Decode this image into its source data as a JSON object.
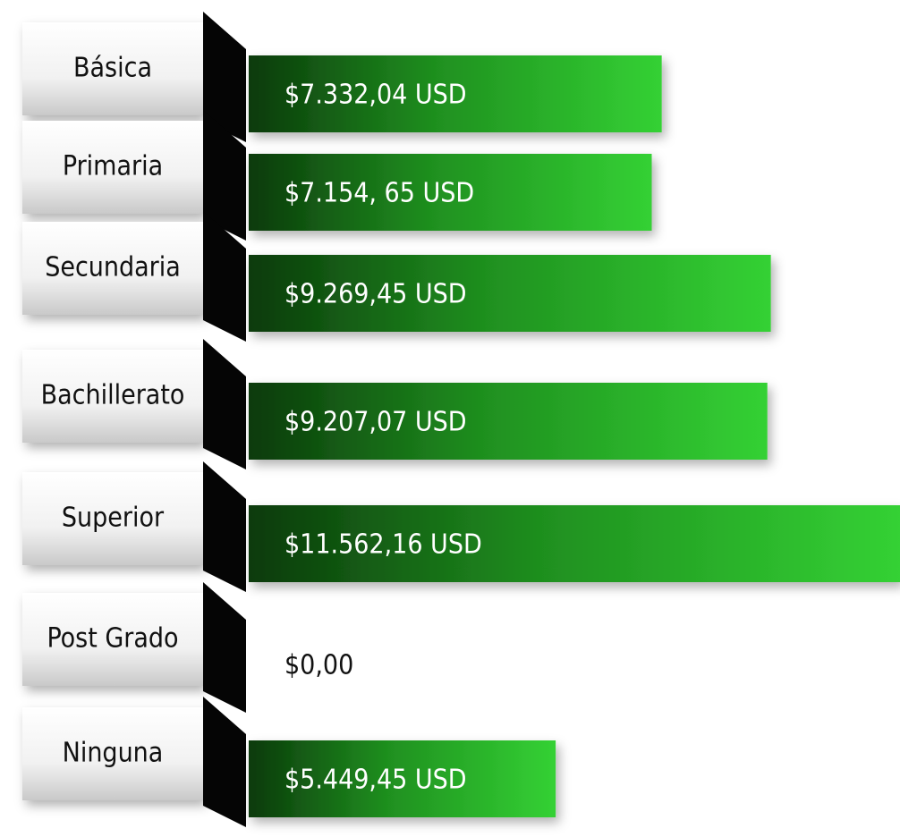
{
  "chart_data": {
    "type": "bar",
    "orientation": "horizontal",
    "categories": [
      "Básica",
      "Primaria",
      "Secundaria",
      "Bachillerato",
      "Superior",
      "Post Grado",
      "Ninguna"
    ],
    "values": [
      7332.04,
      7154.65,
      9269.45,
      9207.07,
      11562.16,
      0,
      5449.45
    ],
    "value_labels": [
      "$7.332,04 USD",
      "$7.154, 65 USD",
      "$9.269,45 USD",
      "$9.207,07 USD",
      "$11.562,16 USD",
      "$0,00",
      "$5.449,45 USD"
    ],
    "color": "#2fbf2f"
  }
}
